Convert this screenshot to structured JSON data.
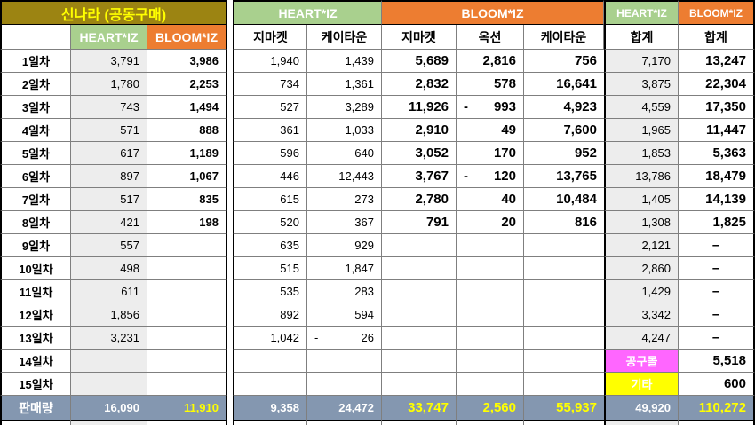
{
  "header": {
    "shinnara": "신나라 (공동구매)",
    "heartiz": "HEART*IZ",
    "bloomiz": "BLOOM*IZ"
  },
  "subheader": [
    "HEART*IZ",
    "BLOOM*IZ",
    "지마켓",
    "케이타운",
    "지마켓",
    "옥션",
    "케이타운",
    "합계",
    "합계"
  ],
  "colors": {
    "shinnara_bg": "#9C8412",
    "shinnara_text": "#FFFF00",
    "heartiz_bg": "#A9D08E",
    "bloomiz_bg": "#ED7D31",
    "total_row_bg": "#8497B0",
    "highlight_text": "#FFFF00",
    "gonggu_mall_bg": "#FF66FF",
    "gita_bg": "#FFFF00",
    "shaded_column_bg": "#EDEDED"
  },
  "rows": [
    {
      "label": "1일차",
      "cells": [
        "3,791",
        "3,986",
        "1,940",
        "1,439",
        "5,689",
        "2,816",
        "756",
        "7,170",
        "13,247"
      ]
    },
    {
      "label": "2일차",
      "cells": [
        "1,780",
        "2,253",
        "734",
        "1,361",
        "2,832",
        "578",
        "16,641",
        "3,875",
        "22,304"
      ]
    },
    {
      "label": "3일차",
      "cells": [
        "743",
        "1,494",
        "527",
        "3,289",
        "11,926",
        "- 993",
        "4,923",
        "4,559",
        "17,350"
      ]
    },
    {
      "label": "4일차",
      "cells": [
        "571",
        "888",
        "361",
        "1,033",
        "2,910",
        "49",
        "7,600",
        "1,965",
        "11,447"
      ]
    },
    {
      "label": "5일차",
      "cells": [
        "617",
        "1,189",
        "596",
        "640",
        "3,052",
        "170",
        "952",
        "1,853",
        "5,363"
      ]
    },
    {
      "label": "6일차",
      "cells": [
        "897",
        "1,067",
        "446",
        "12,443",
        "3,767",
        "- 120",
        "13,765",
        "13,786",
        "18,479"
      ]
    },
    {
      "label": "7일차",
      "cells": [
        "517",
        "835",
        "615",
        "273",
        "2,780",
        "40",
        "10,484",
        "1,405",
        "14,139"
      ]
    },
    {
      "label": "8일차",
      "cells": [
        "421",
        "198",
        "520",
        "367",
        "791",
        "20",
        "816",
        "1,308",
        "1,825"
      ]
    },
    {
      "label": "9일차",
      "cells": [
        "557",
        "",
        "635",
        "929",
        "",
        "",
        "",
        "2,121",
        "–"
      ]
    },
    {
      "label": "10일차",
      "cells": [
        "498",
        "",
        "515",
        "1,847",
        "",
        "",
        "",
        "2,860",
        "–"
      ]
    },
    {
      "label": "11일차",
      "cells": [
        "611",
        "",
        "535",
        "283",
        "",
        "",
        "",
        "1,429",
        "–"
      ]
    },
    {
      "label": "12일차",
      "cells": [
        "1,856",
        "",
        "892",
        "594",
        "",
        "",
        "",
        "3,342",
        "–"
      ]
    },
    {
      "label": "13일차",
      "cells": [
        "3,231",
        "",
        "1,042",
        "- 26",
        "",
        "",
        "",
        "4,247",
        "–"
      ]
    },
    {
      "label": "14일차",
      "cells": [
        "",
        "",
        "",
        "",
        "",
        "",
        "",
        {
          "t": "공구몰",
          "chip": "pink"
        },
        "5,518"
      ]
    },
    {
      "label": "15일차",
      "cells": [
        "",
        "",
        "",
        "",
        "",
        "",
        "",
        {
          "t": "기타",
          "chip": "yellow"
        },
        "600"
      ]
    }
  ],
  "total": {
    "label": "판매량",
    "cells": [
      "16,090",
      {
        "t": "11,910",
        "hl": true
      },
      "9,358",
      "24,472",
      {
        "t": "33,747",
        "hl": true
      },
      {
        "t": "2,560",
        "hl": true
      },
      {
        "t": "55,937",
        "hl": true
      },
      "49,920",
      {
        "t": "110,272",
        "hl": true
      }
    ]
  }
}
